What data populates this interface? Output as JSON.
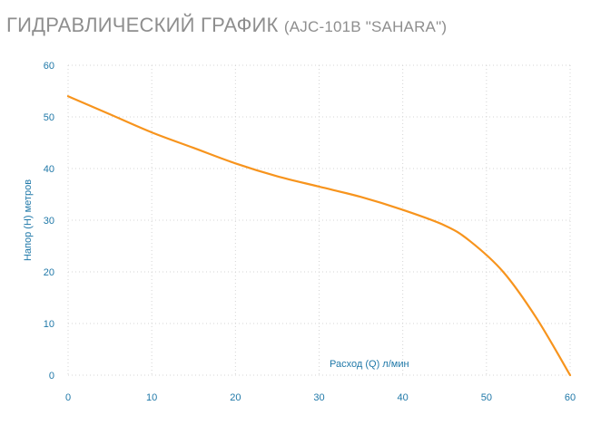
{
  "title": {
    "main": "ГИДРАВЛИЧЕСКИЙ ГРАФИК",
    "sub": "(AJC-101B \"SAHARA\")"
  },
  "colors": {
    "line": "#f7941d",
    "axis_text": "#1f78a8",
    "grid": "#d4d4d4",
    "title": "#8e8e8e"
  },
  "chart_data": {
    "type": "line",
    "title": "ГИДРАВЛИЧЕСКИЙ ГРАФИК (AJC-101B \"SAHARA\")",
    "xlabel": "Расход (Q) л/мин",
    "ylabel": "Напор (H) метров",
    "xlim": [
      0,
      60
    ],
    "ylim": [
      0,
      60
    ],
    "xticks": [
      "0",
      "10",
      "20",
      "30",
      "40",
      "50",
      "60"
    ],
    "yticks": [
      "0",
      "10",
      "20",
      "30",
      "40",
      "50",
      "60"
    ],
    "grid": true,
    "series": [
      {
        "x": [
          0,
          5,
          10,
          15,
          20,
          25,
          30,
          35,
          40,
          45,
          48,
          52,
          56,
          60
        ],
        "values": [
          54,
          50.5,
          47,
          44,
          41,
          38.5,
          36.5,
          34.5,
          32,
          29,
          26,
          20,
          11,
          0
        ]
      }
    ]
  }
}
